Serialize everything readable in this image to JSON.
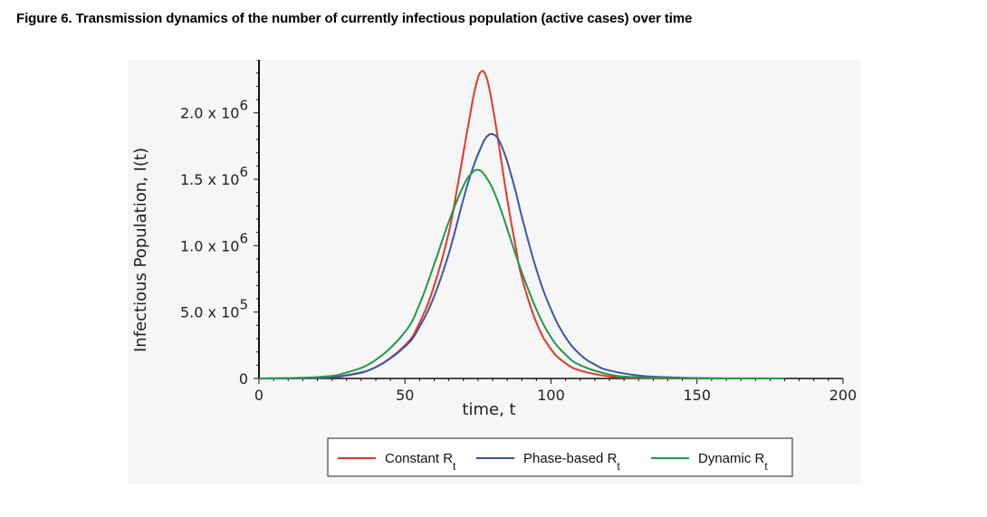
{
  "figure": {
    "title": "Figure 6. Transmission dynamics of the number of currently infectious population (active cases) over time"
  },
  "chart_data": {
    "type": "line",
    "title": "",
    "xlabel": "time, t",
    "ylabel": "Infectious Population, I(t)",
    "xlim": [
      0,
      200
    ],
    "ylim": [
      0,
      2400000
    ],
    "grid": false,
    "legend_position": "bottom",
    "x_ticks": [
      {
        "value": 0,
        "label": "0"
      },
      {
        "value": 50,
        "label": "50"
      },
      {
        "value": 100,
        "label": "100"
      },
      {
        "value": 150,
        "label": "150"
      },
      {
        "value": 200,
        "label": "200"
      }
    ],
    "y_ticks": [
      {
        "value": 0,
        "base": "0",
        "exp": ""
      },
      {
        "value": 500000,
        "base": "5.0 x 10",
        "exp": "5"
      },
      {
        "value": 1000000,
        "base": "1.0 x 10",
        "exp": "6"
      },
      {
        "value": 1500000,
        "base": "1.5 x 10",
        "exp": "6"
      },
      {
        "value": 2000000,
        "base": "2.0 x 10",
        "exp": "6"
      }
    ],
    "series": [
      {
        "name": "Constant R",
        "name_sub": "t",
        "color": "#e8352b",
        "x": [
          0,
          20,
          30,
          40,
          50,
          55,
          60,
          65,
          68,
          70,
          72,
          74,
          76,
          78,
          80,
          82,
          85,
          88,
          90,
          95,
          100,
          105,
          110,
          120,
          130,
          150,
          180
        ],
        "y": [
          0,
          5000,
          22000,
          85000,
          250000,
          420000,
          700000,
          1100000,
          1450000,
          1700000,
          1950000,
          2180000,
          2310000,
          2260000,
          2050000,
          1780000,
          1350000,
          980000,
          760000,
          420000,
          220000,
          115000,
          60000,
          15000,
          4000,
          500,
          0
        ]
      },
      {
        "name": "Phase-based R",
        "name_sub": "t",
        "color": "#3a56a8",
        "x": [
          0,
          20,
          30,
          40,
          50,
          55,
          60,
          65,
          70,
          73,
          76,
          78,
          80,
          82,
          84,
          86,
          88,
          90,
          95,
          100,
          105,
          110,
          115,
          120,
          130,
          140,
          150,
          160,
          180
        ],
        "y": [
          0,
          5000,
          25000,
          85000,
          240000,
          390000,
          620000,
          940000,
          1350000,
          1570000,
          1740000,
          1820000,
          1840000,
          1800000,
          1700000,
          1560000,
          1400000,
          1220000,
          820000,
          520000,
          310000,
          180000,
          105000,
          60000,
          22000,
          9000,
          3000,
          1000,
          0
        ]
      },
      {
        "name": "Dynamic R",
        "name_sub": "t",
        "color": "#1e9a4a",
        "x": [
          0,
          20,
          30,
          40,
          50,
          55,
          60,
          65,
          70,
          73,
          75,
          77,
          80,
          83,
          86,
          90,
          95,
          100,
          105,
          110,
          120,
          130,
          150,
          180
        ],
        "y": [
          0,
          10000,
          45000,
          140000,
          350000,
          560000,
          860000,
          1180000,
          1450000,
          1550000,
          1570000,
          1540000,
          1430000,
          1260000,
          1060000,
          800000,
          520000,
          310000,
          180000,
          100000,
          30000,
          9000,
          1000,
          0
        ]
      }
    ]
  }
}
